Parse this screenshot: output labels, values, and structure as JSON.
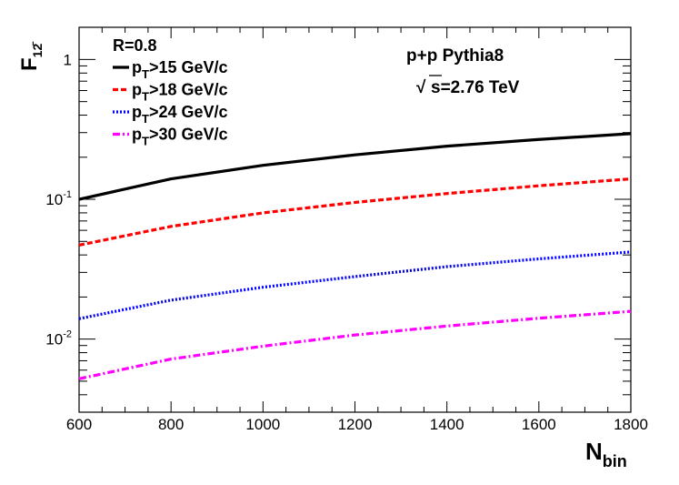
{
  "chart_data": {
    "type": "line",
    "title": "",
    "xlabel": "N",
    "xlabel_sub": "bin",
    "ylabel": "F",
    "ylabel_sub": "12̄",
    "xlim": [
      600,
      1800
    ],
    "ylim": [
      0.003,
      1.7
    ],
    "yscale": "log",
    "x_ticks": [
      600,
      800,
      1000,
      1200,
      1400,
      1600,
      1800
    ],
    "x_tick_labels": [
      "600",
      "800",
      "1000",
      "1200",
      "1400",
      "1600",
      "1800"
    ],
    "y_tick_labels": [
      {
        "value": 1,
        "base": "1",
        "exp": ""
      },
      {
        "value": 0.1,
        "base": "10",
        "exp": "-1"
      },
      {
        "value": 0.01,
        "base": "10",
        "exp": "-2"
      }
    ],
    "legend_header": "R=0.8",
    "annotations": {
      "line1": "p+p Pythia8",
      "sqrt_symbol": "√",
      "line2": "s=2.76 TeV"
    },
    "series": [
      {
        "name": "pT>15 GeV/c",
        "label_p": "p",
        "label_sub": "T",
        "label_rest": ">15 GeV/c",
        "color": "#000000",
        "dash": "",
        "x": [
          600,
          800,
          1000,
          1200,
          1400,
          1600,
          1800
        ],
        "values": [
          0.1,
          0.14,
          0.175,
          0.208,
          0.24,
          0.268,
          0.295
        ]
      },
      {
        "name": "pT>18 GeV/c",
        "label_p": "p",
        "label_sub": "T",
        "label_rest": ">18 GeV/c",
        "color": "#ff0000",
        "dash": "6 3",
        "x": [
          600,
          800,
          1000,
          1200,
          1400,
          1600,
          1800
        ],
        "values": [
          0.047,
          0.064,
          0.08,
          0.095,
          0.11,
          0.125,
          0.14
        ]
      },
      {
        "name": "pT>24 GeV/c",
        "label_p": "p",
        "label_sub": "T",
        "label_rest": ">24 GeV/c",
        "color": "#0000ff",
        "dash": "2 2",
        "x": [
          600,
          800,
          1000,
          1200,
          1400,
          1600,
          1800
        ],
        "values": [
          0.014,
          0.019,
          0.0235,
          0.028,
          0.033,
          0.0375,
          0.042
        ]
      },
      {
        "name": "pT>30 GeV/c",
        "label_p": "p",
        "label_sub": "T",
        "label_rest": ">30 GeV/c",
        "color": "#ff00ff",
        "dash": "8 3 2 3",
        "x": [
          600,
          800,
          1000,
          1200,
          1400,
          1600,
          1800
        ],
        "values": [
          0.0052,
          0.0072,
          0.0089,
          0.0107,
          0.0124,
          0.0141,
          0.0158
        ]
      }
    ]
  }
}
